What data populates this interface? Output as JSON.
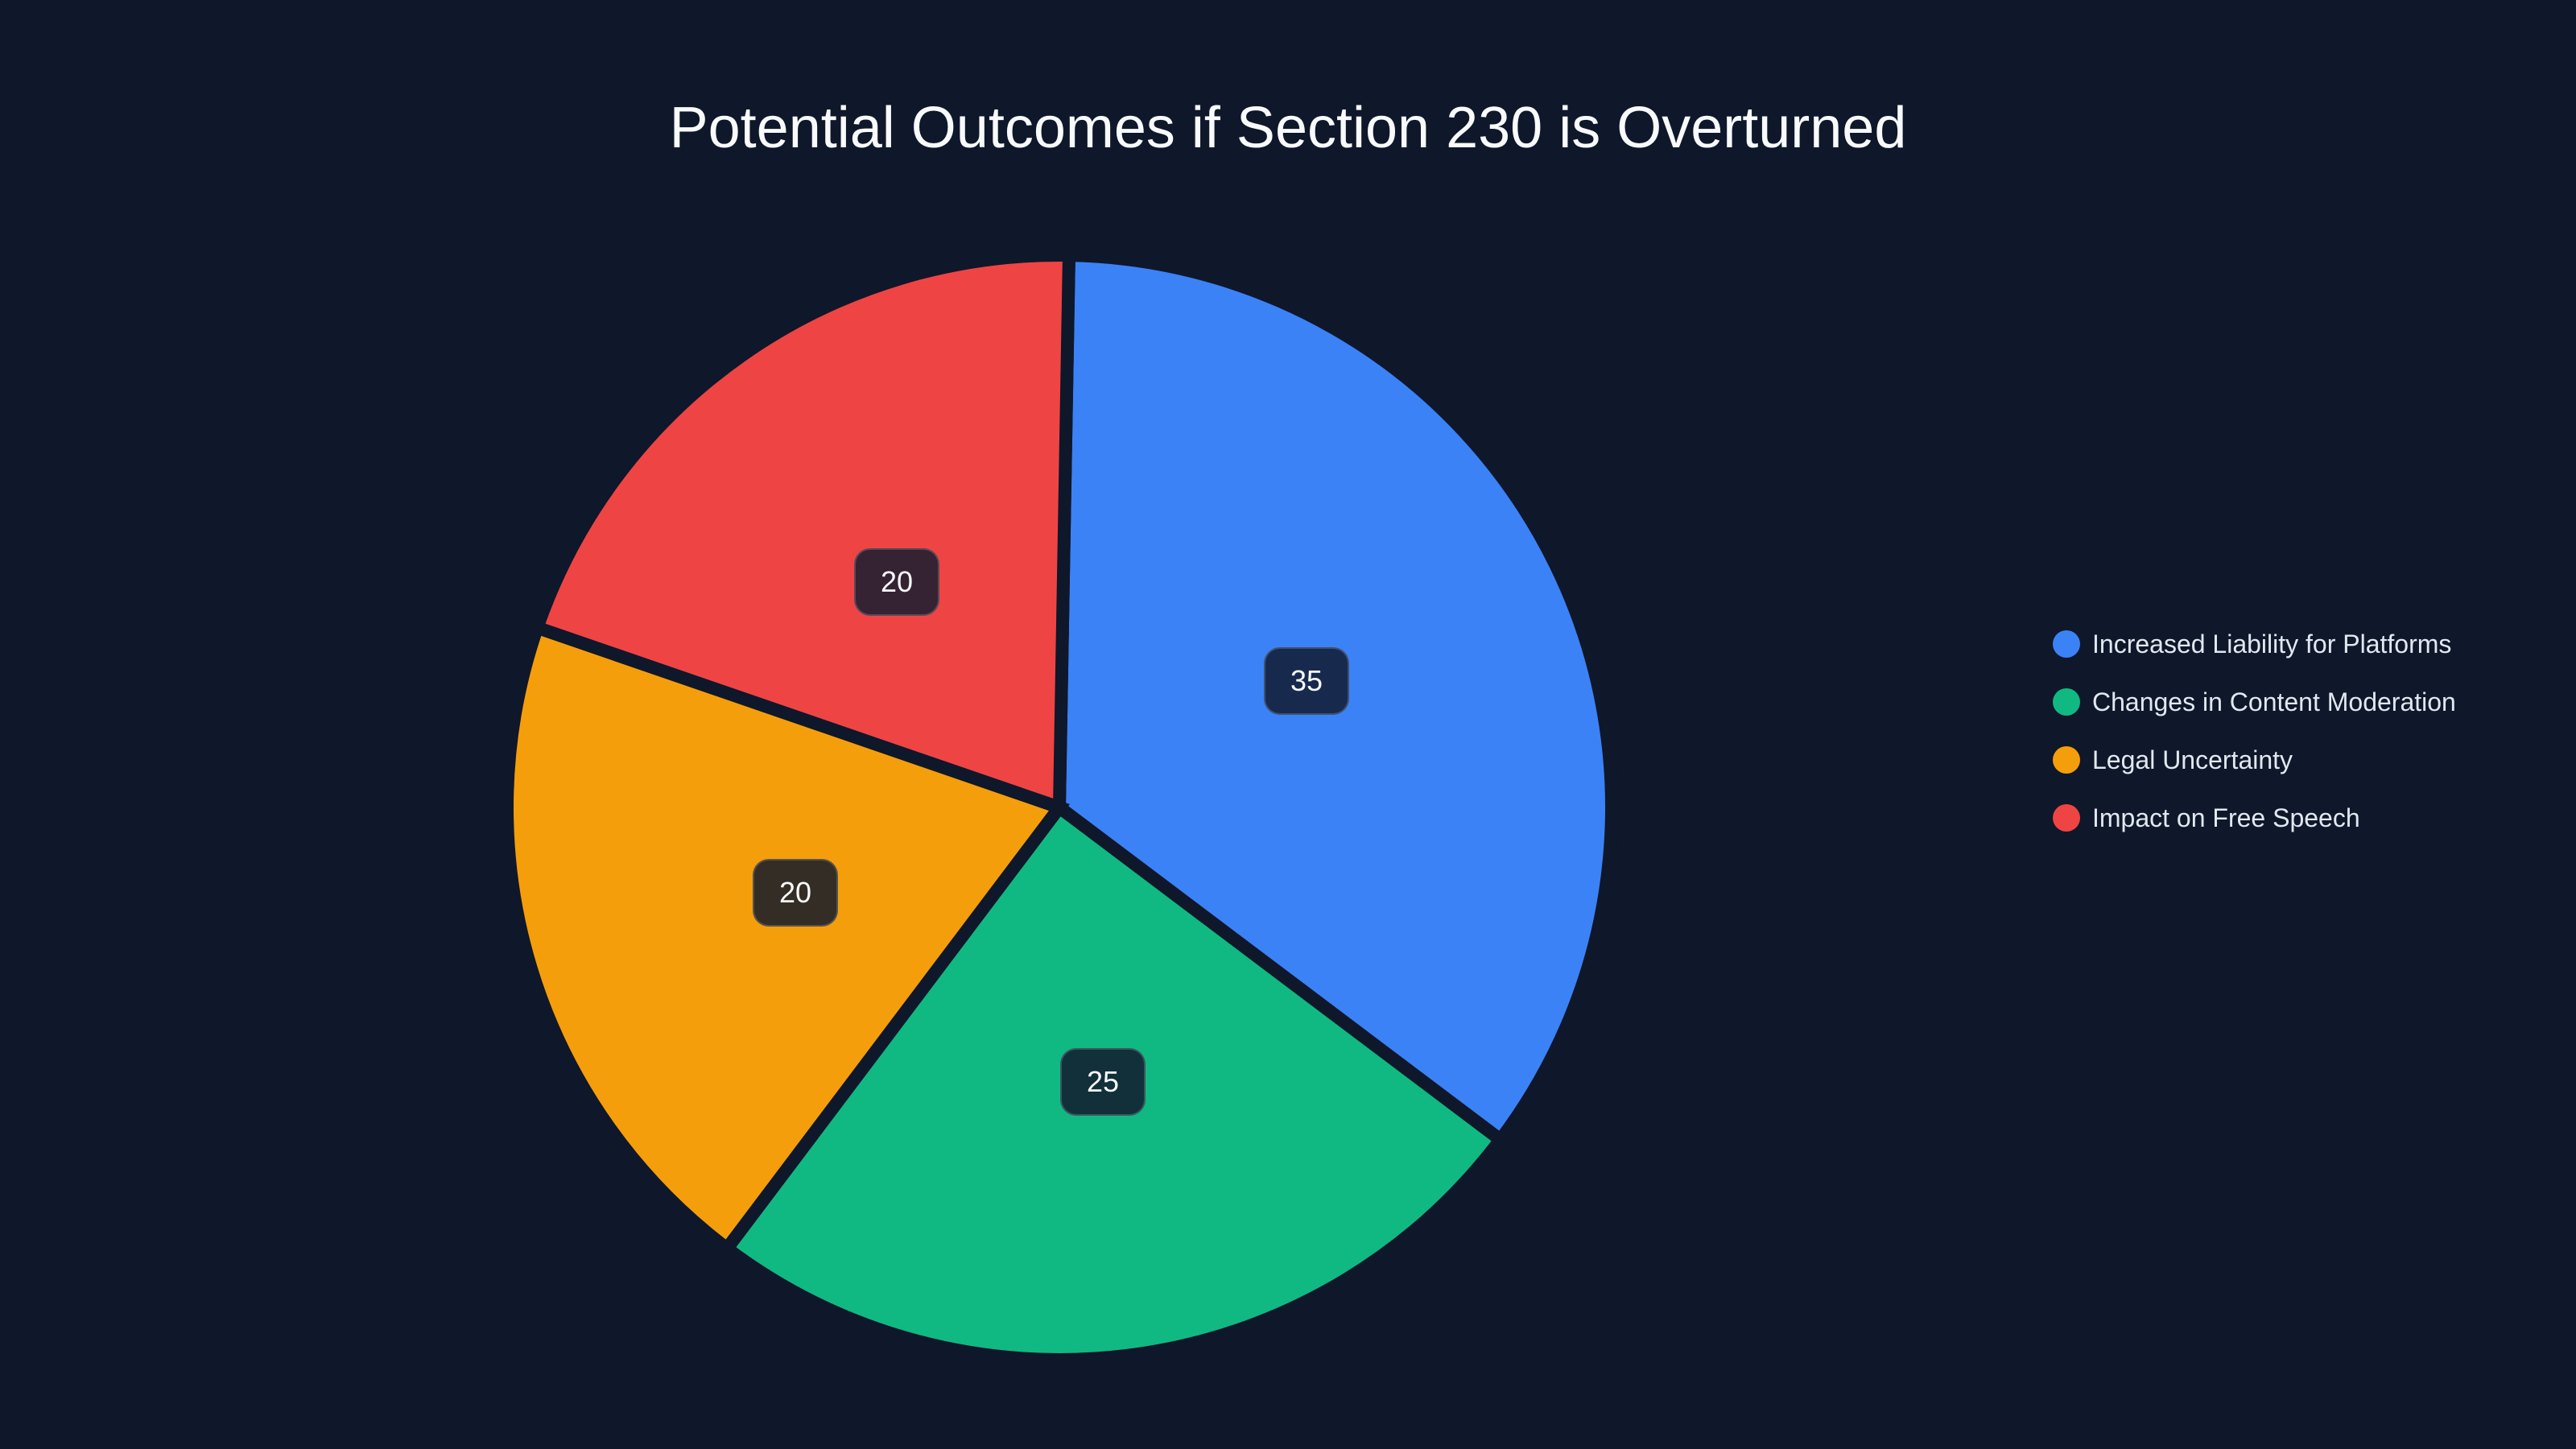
{
  "chart_data": {
    "type": "pie",
    "title": "Potential Outcomes if Section 230 is Overturned",
    "categories": [
      "Increased Liability for Platforms",
      "Changes in Content Moderation",
      "Legal Uncertainty",
      "Impact on Free Speech"
    ],
    "values": [
      35,
      25,
      20,
      20
    ],
    "colors": [
      "#3b82f6",
      "#10b981",
      "#f59e0b",
      "#ef4444"
    ],
    "data_labels": [
      "35",
      "25",
      "20",
      "20"
    ],
    "legend_position": "right",
    "start_angle_deg": 0,
    "direction": "clockwise"
  },
  "title": "Potential Outcomes if Section 230 is Overturned",
  "labels": [
    "35",
    "25",
    "20",
    "20"
  ],
  "legend": [
    {
      "label": "Increased Liability for Platforms",
      "color": "#3b82f6"
    },
    {
      "label": "Changes in Content Moderation",
      "color": "#10b981"
    },
    {
      "label": "Legal Uncertainty",
      "color": "#f59e0b"
    },
    {
      "label": "Impact on Free Speech",
      "color": "#ef4444"
    }
  ],
  "colors": {
    "background": "#0f172a",
    "text": "#f8fafc"
  }
}
